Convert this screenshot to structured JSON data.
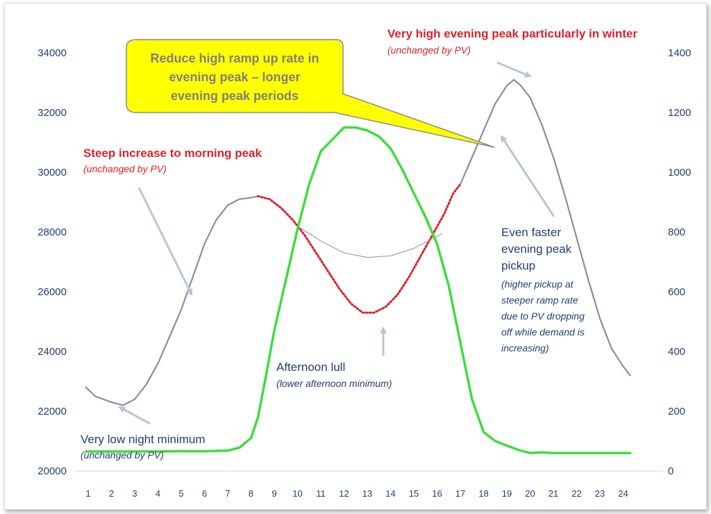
{
  "chart_data": {
    "type": "line",
    "x": [
      1,
      2,
      3,
      4,
      5,
      6,
      7,
      8,
      9,
      10,
      11,
      12,
      13,
      14,
      15,
      16,
      17,
      18,
      19,
      20,
      21,
      22,
      23,
      24
    ],
    "left_axis": {
      "ticks": [
        20000,
        22000,
        24000,
        26000,
        28000,
        30000,
        32000,
        34000
      ],
      "ylim": [
        20000,
        34000
      ]
    },
    "right_axis": {
      "ticks": [
        0,
        200,
        400,
        600,
        800,
        1000,
        1200,
        1400
      ],
      "ylim": [
        0,
        1400
      ]
    },
    "series": [
      {
        "role": "demand",
        "axis": "left",
        "color": "#8c8c9a",
        "x": [
          0.9,
          1.3,
          2.0,
          2.5,
          3.0,
          3.5,
          4.0,
          4.5,
          5.0,
          5.5,
          6.0,
          6.5,
          7.0,
          7.5,
          8.0,
          8.3
        ],
        "y": [
          22800,
          22500,
          22300,
          22200,
          22400,
          22900,
          23600,
          24500,
          25400,
          26500,
          27600,
          28400,
          28900,
          29100,
          29150,
          29200
        ]
      },
      {
        "role": "demand-with-pv",
        "axis": "left",
        "color": "#e0202a",
        "style": "dotted",
        "x": [
          8.3,
          8.8,
          9.3,
          9.8,
          10.3,
          10.8,
          11.3,
          11.8,
          12.3,
          12.8,
          13.3,
          13.8,
          14.3,
          14.8,
          15.3,
          15.8,
          16.3,
          16.7,
          17.0
        ],
        "y": [
          29200,
          29100,
          28800,
          28400,
          27900,
          27300,
          26700,
          26100,
          25600,
          25300,
          25300,
          25500,
          25900,
          26500,
          27200,
          27900,
          28600,
          29300,
          29600
        ]
      },
      {
        "role": "demand-without-pv",
        "axis": "left",
        "color": "#8c8c9a",
        "style": "thin",
        "x": [
          10.0,
          11.0,
          12.0,
          13.0,
          14.0,
          15.0,
          16.0,
          16.2
        ],
        "y": [
          28200,
          27700,
          27300,
          27150,
          27200,
          27450,
          27850,
          27950
        ]
      },
      {
        "role": "demand",
        "axis": "left",
        "color": "#8c8c9a",
        "x": [
          17.0,
          17.5,
          18.0,
          18.5,
          19.0,
          19.3,
          19.6,
          20.0,
          20.5,
          21.0,
          21.5,
          22.0,
          22.5,
          23.0,
          23.5,
          24.0,
          24.3
        ],
        "y": [
          29600,
          30500,
          31400,
          32300,
          32900,
          33100,
          32900,
          32500,
          31600,
          30500,
          29200,
          27800,
          26400,
          25100,
          24100,
          23500,
          23200
        ]
      },
      {
        "role": "pv",
        "axis": "right",
        "color": "#3fdc3f",
        "x": [
          0.9,
          2.0,
          3.0,
          4.0,
          5.0,
          6.0,
          7.0,
          7.5,
          8.0,
          8.3,
          8.6,
          9.0,
          9.5,
          10.0,
          10.5,
          11.0,
          11.5,
          12.0,
          12.5,
          13.0,
          13.5,
          14.0,
          14.5,
          15.0,
          15.5,
          16.0,
          16.5,
          17.0,
          17.5,
          18.0,
          18.5,
          19.0,
          19.5,
          20.0,
          20.5,
          21.0,
          22.0,
          23.0,
          24.0,
          24.3
        ],
        "y": [
          65,
          65,
          65,
          65,
          66,
          66,
          68,
          78,
          110,
          180,
          300,
          470,
          640,
          810,
          960,
          1070,
          1110,
          1150,
          1150,
          1140,
          1120,
          1080,
          1010,
          930,
          850,
          760,
          620,
          430,
          240,
          130,
          100,
          85,
          70,
          60,
          62,
          60,
          60,
          60,
          60,
          60
        ]
      }
    ],
    "annotations": {
      "evening_peak_title": "Very high evening peak particularly in winter",
      "evening_peak_sub": "(unchanged by PV)",
      "callout_line1": "Reduce high ramp up rate in",
      "callout_line2": "evening peak – longer",
      "callout_line3": "evening peak periods",
      "morning_title": "Steep increase to morning peak",
      "morning_sub": "(unchanged by PV)",
      "faster_line1": "Even faster",
      "faster_line2": "evening peak",
      "faster_line3": "pickup",
      "faster_sub1": "(higher pickup at",
      "faster_sub2": "steeper ramp rate",
      "faster_sub3": "due to PV dropping",
      "faster_sub4": "off while demand is",
      "faster_sub5": "increasing)",
      "lull_title": "Afternoon lull",
      "lull_sub": "(lower afternoon minimum)",
      "night_title": "Very low night minimum",
      "night_sub": "(unchanged by PV)"
    },
    "colors": {
      "axis_text": "#1f3f72",
      "annotation_red": "#e0202a",
      "callout_fill": "#ffff00",
      "arrow": "#b8c4d6"
    }
  }
}
